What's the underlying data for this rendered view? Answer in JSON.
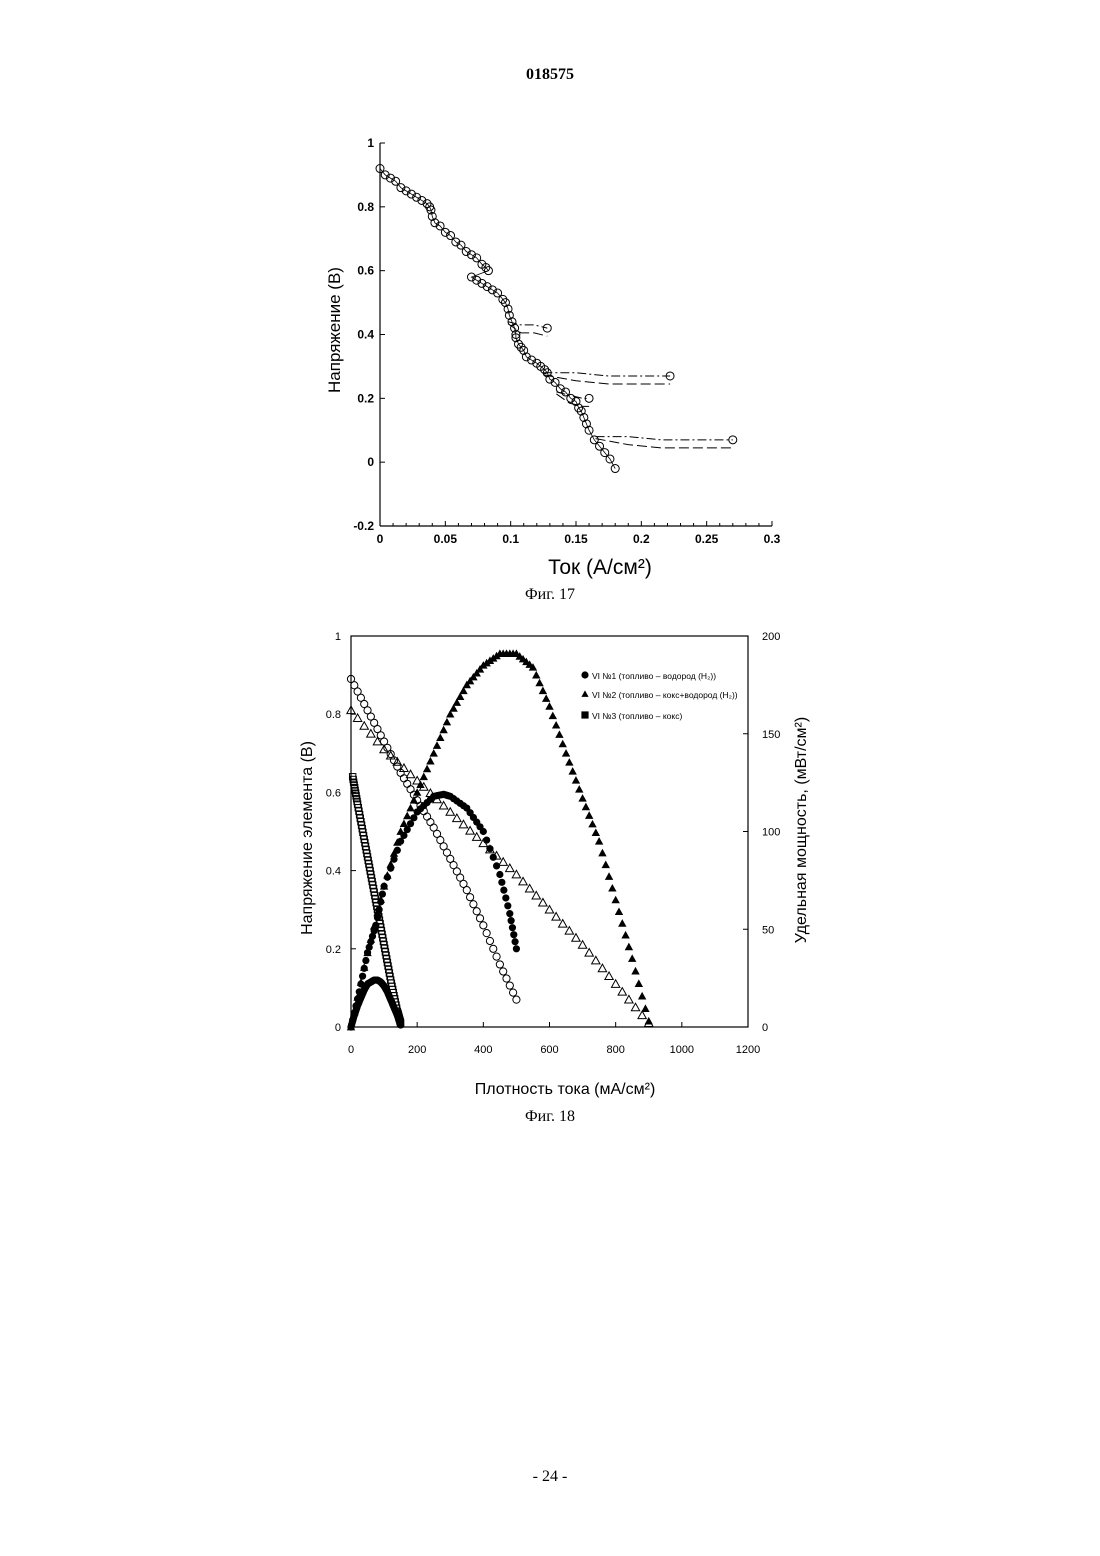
{
  "header": {
    "doc_number": "018575"
  },
  "footer": {
    "page_number": "- 24 -"
  },
  "figures": [
    {
      "caption": "Фиг. 17"
    },
    {
      "caption": "Фиг. 18"
    }
  ],
  "chart_data": [
    {
      "type": "line",
      "title": "",
      "xlabel": "Ток (А/см²)",
      "ylabel": "Напряжение (В)",
      "xlim": [
        0,
        0.3
      ],
      "ylim": [
        -0.2,
        1
      ],
      "x_ticks": [
        "0",
        "0.05",
        "0.1",
        "0.15",
        "0.2",
        "0.25",
        "0.3"
      ],
      "y_ticks": [
        "-0.2",
        "0",
        "0.2",
        "0.4",
        "0.6",
        "0.8",
        "1"
      ],
      "grid": false,
      "series": [
        {
          "marker": "open-circle",
          "x": [
            0.0,
            0.004,
            0.008,
            0.012,
            0.016,
            0.02,
            0.024,
            0.028,
            0.032,
            0.036,
            0.038,
            0.039,
            0.04,
            0.042,
            0.046,
            0.05,
            0.054,
            0.058,
            0.062,
            0.066,
            0.07,
            0.074,
            0.078,
            0.081,
            0.083,
            0.07,
            0.074,
            0.078,
            0.082,
            0.086,
            0.09,
            0.094,
            0.096,
            0.098,
            0.099,
            0.101,
            0.103,
            0.104,
            0.104,
            0.106,
            0.108,
            0.11,
            0.112,
            0.116,
            0.12,
            0.123,
            0.126,
            0.128,
            0.13,
            0.134,
            0.138,
            0.142,
            0.146,
            0.15,
            0.152,
            0.154,
            0.156,
            0.158,
            0.16,
            0.164,
            0.168,
            0.172,
            0.176,
            0.18
          ],
          "y": [
            0.92,
            0.9,
            0.89,
            0.88,
            0.86,
            0.85,
            0.84,
            0.83,
            0.82,
            0.81,
            0.8,
            0.79,
            0.77,
            0.75,
            0.74,
            0.72,
            0.71,
            0.69,
            0.68,
            0.66,
            0.65,
            0.64,
            0.62,
            0.61,
            0.6,
            0.58,
            0.57,
            0.56,
            0.55,
            0.54,
            0.53,
            0.51,
            0.5,
            0.48,
            0.46,
            0.44,
            0.42,
            0.4,
            0.39,
            0.37,
            0.36,
            0.35,
            0.33,
            0.32,
            0.31,
            0.3,
            0.29,
            0.28,
            0.26,
            0.25,
            0.23,
            0.22,
            0.2,
            0.19,
            0.17,
            0.16,
            0.14,
            0.12,
            0.1,
            0.07,
            0.05,
            0.03,
            0.01,
            -0.02
          ]
        },
        {
          "marker": "dashed-excursion",
          "x": [
            0.098,
            0.108,
            0.118,
            0.128
          ],
          "y": [
            0.44,
            0.43,
            0.43,
            0.42
          ]
        },
        {
          "marker": "dashed-excursion",
          "x": [
            0.125,
            0.15,
            0.175,
            0.2,
            0.222
          ],
          "y": [
            0.28,
            0.28,
            0.27,
            0.27,
            0.27
          ]
        },
        {
          "marker": "dashed-excursion",
          "x": [
            0.135,
            0.145,
            0.155,
            0.16
          ],
          "y": [
            0.22,
            0.21,
            0.2,
            0.2
          ]
        },
        {
          "marker": "dashed-excursion",
          "x": [
            0.165,
            0.19,
            0.215,
            0.24,
            0.25,
            0.27
          ],
          "y": [
            0.08,
            0.08,
            0.07,
            0.07,
            0.07,
            0.07
          ]
        }
      ]
    },
    {
      "type": "scatter",
      "title": "",
      "xlabel": "Плотность тока (мА/см²)",
      "ylabel": "Напряжение элемента (В)",
      "y2label": "Удельная мощность, (мВт/см²)",
      "xlim": [
        0,
        1200
      ],
      "ylim": [
        0,
        1
      ],
      "y2lim": [
        0,
        200
      ],
      "x_ticks": [
        "0",
        "200",
        "400",
        "600",
        "800",
        "1000",
        "1200"
      ],
      "y_ticks": [
        "0",
        "0.2",
        "0.4",
        "0.6",
        "0.8",
        "1"
      ],
      "y2_ticks": [
        "0",
        "50",
        "100",
        "150",
        "200"
      ],
      "legend_position": "top-right",
      "legend": [
        "VI №1 (топливо – водород (H₂))",
        "VI №2 (топливо – кокс+водород (H₂))",
        "VI №3 (топливо – кокс)"
      ],
      "grid": false,
      "series": [
        {
          "name": "VI №1 (топливо – водород (H₂))",
          "kind": "voltage",
          "marker": "open-circle",
          "axis": "left",
          "x": [
            0,
            50,
            100,
            150,
            200,
            250,
            300,
            350,
            400,
            450,
            500
          ],
          "y": [
            0.89,
            0.81,
            0.73,
            0.65,
            0.58,
            0.51,
            0.43,
            0.35,
            0.26,
            0.16,
            0.07
          ]
        },
        {
          "name": "VI №1 (топливо – водород (H₂))",
          "kind": "power",
          "marker": "filled-circle",
          "axis": "right",
          "x": [
            0,
            25,
            50,
            75,
            100,
            150,
            200,
            250,
            280,
            300,
            350,
            400,
            450,
            480,
            500
          ],
          "y": [
            0,
            18,
            38,
            52,
            72,
            95,
            110,
            118,
            119,
            118,
            112,
            100,
            78,
            58,
            40
          ]
        },
        {
          "name": "VI №2 (топливо – кокс+водород (H₂))",
          "kind": "voltage",
          "marker": "open-triangle",
          "axis": "left",
          "x": [
            0,
            100,
            200,
            300,
            400,
            500,
            600,
            700,
            800,
            900
          ],
          "y": [
            0.81,
            0.71,
            0.63,
            0.55,
            0.47,
            0.39,
            0.3,
            0.21,
            0.11,
            0.01
          ]
        },
        {
          "name": "VI №2 (топливо – кокс+водород (H₂))",
          "kind": "power",
          "marker": "filled-triangle",
          "axis": "right",
          "x": [
            0,
            50,
            100,
            150,
            200,
            250,
            300,
            350,
            400,
            450,
            500,
            550,
            600,
            650,
            700,
            750,
            800,
            850,
            900
          ],
          "y": [
            0,
            38,
            72,
            100,
            120,
            140,
            160,
            175,
            185,
            191,
            191,
            184,
            164,
            140,
            117,
            95,
            65,
            35,
            3
          ]
        },
        {
          "name": "VI №3 (топливо – кокс)",
          "kind": "voltage",
          "marker": "open-square",
          "axis": "left",
          "x": [
            5,
            20,
            40,
            60,
            80,
            100,
            120,
            140,
            150
          ],
          "y": [
            0.64,
            0.57,
            0.48,
            0.39,
            0.3,
            0.21,
            0.12,
            0.04,
            0.01
          ]
        },
        {
          "name": "VI №3 (топливо – кокс)",
          "kind": "power",
          "marker": "filled-circle",
          "axis": "right",
          "x": [
            0,
            10,
            20,
            30,
            40,
            50,
            60,
            70,
            80,
            90,
            100,
            110,
            120,
            130,
            140,
            150
          ],
          "y": [
            0,
            6,
            11,
            15,
            19,
            22,
            23,
            24,
            24,
            23,
            21,
            18,
            14,
            10,
            6,
            1
          ]
        }
      ]
    }
  ]
}
